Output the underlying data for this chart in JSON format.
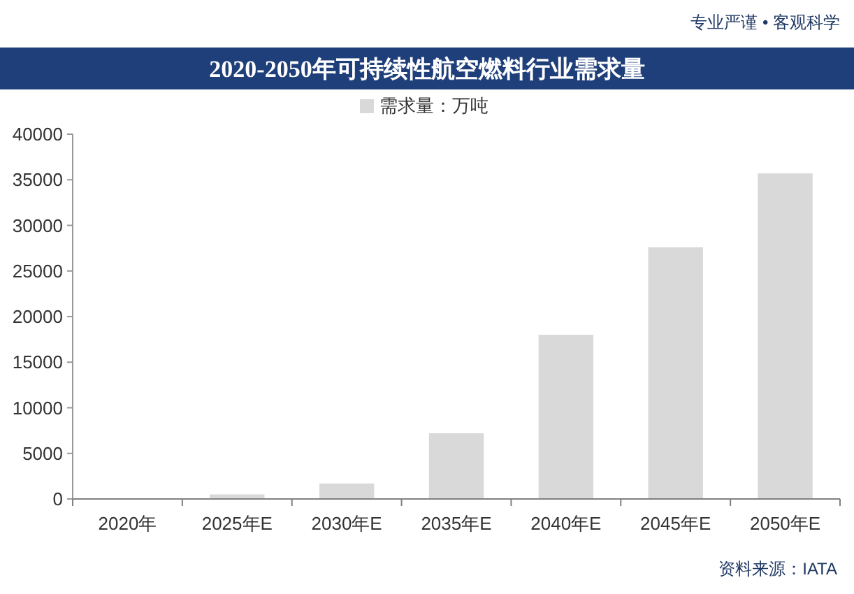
{
  "chart_data": {
    "type": "bar",
    "title": "2020-2050年可持续性航空燃料行业需求量",
    "categories": [
      "2020年",
      "2025年E",
      "2030年E",
      "2035年E",
      "2040年E",
      "2045年E",
      "2050年E"
    ],
    "series": [
      {
        "name": "需求量：万吨",
        "color": "#d9d9d9",
        "values": [
          0,
          500,
          1700,
          7200,
          18000,
          27600,
          35700
        ]
      }
    ],
    "ylim": [
      0,
      40000
    ],
    "yticks": [
      0,
      5000,
      10000,
      15000,
      20000,
      25000,
      30000,
      35000,
      40000
    ],
    "grid": false,
    "legend": "top",
    "annotations": [
      "专业严谨 • 客观科学",
      "资料来源：IATA"
    ]
  }
}
